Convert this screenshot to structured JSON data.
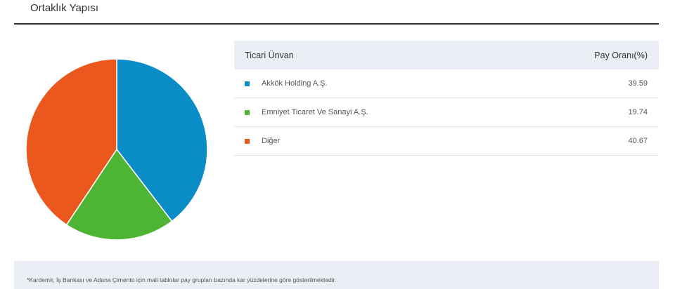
{
  "section_title": "Ortaklık Yapısı",
  "table": {
    "col_name": "Ticari Ünvan",
    "col_share": "Pay Oranı(%)"
  },
  "chart_data": {
    "type": "pie",
    "categories": [
      "Akkök Holding A.Ş.",
      "Emniyet Ticaret Ve Sanayi A.Ş.",
      "Diğer"
    ],
    "values": [
      39.59,
      19.74,
      40.67
    ],
    "display_values": [
      "39.59",
      "19.74",
      "40.67"
    ],
    "colors": [
      "#0a8dc7",
      "#4db533",
      "#ea581e"
    ],
    "start": "top",
    "direction": "clockwise"
  },
  "footnote": "*Kardemir, İş Bankası ve Adana Çimento için mali tablolar pay grupları bazında kar yüzdelerine göre gösterilmektedir."
}
